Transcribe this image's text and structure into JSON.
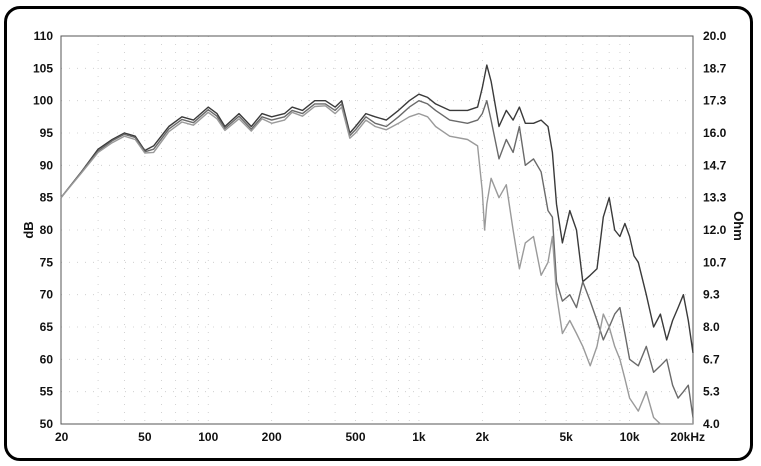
{
  "chart_data": {
    "type": "line",
    "title": "",
    "xlabel": "",
    "ylabel": "dB",
    "y2label": "Ohm",
    "xscale": "log",
    "xlim": [
      20,
      20000
    ],
    "ylim": [
      50,
      110
    ],
    "y2lim": [
      4.0,
      20.0
    ],
    "grid": true,
    "legend": "none",
    "x_ticks": [
      {
        "value": 20,
        "label": "20"
      },
      {
        "value": 50,
        "label": "50"
      },
      {
        "value": 100,
        "label": "100"
      },
      {
        "value": 200,
        "label": "200"
      },
      {
        "value": 500,
        "label": "500"
      },
      {
        "value": 1000,
        "label": "1k"
      },
      {
        "value": 2000,
        "label": "2k"
      },
      {
        "value": 5000,
        "label": "5k"
      },
      {
        "value": 10000,
        "label": "10k"
      },
      {
        "value": 20000,
        "label": "20kHz"
      }
    ],
    "y_ticks": [
      "110",
      "105",
      "100",
      "95",
      "90",
      "85",
      "80",
      "75",
      "70",
      "65",
      "60",
      "55",
      "50"
    ],
    "y2_ticks": [
      "20.0",
      "18.7",
      "17.3",
      "16.0",
      "14.7",
      "13.3",
      "12.0",
      "10.7",
      "9.3",
      "8.0",
      "6.7",
      "5.3",
      "4.0"
    ],
    "series": [
      {
        "color": "#3a3a3a",
        "points": [
          [
            20,
            85
          ],
          [
            25,
            89
          ],
          [
            30,
            92.5
          ],
          [
            35,
            94
          ],
          [
            40,
            95
          ],
          [
            45,
            94.5
          ],
          [
            50,
            92.3
          ],
          [
            55,
            93
          ],
          [
            65,
            96
          ],
          [
            75,
            97.5
          ],
          [
            85,
            97
          ],
          [
            100,
            99
          ],
          [
            110,
            98
          ],
          [
            120,
            96
          ],
          [
            140,
            98
          ],
          [
            160,
            96
          ],
          [
            180,
            98
          ],
          [
            200,
            97.5
          ],
          [
            230,
            98
          ],
          [
            250,
            99
          ],
          [
            280,
            98.5
          ],
          [
            320,
            100
          ],
          [
            360,
            100
          ],
          [
            400,
            99
          ],
          [
            430,
            100
          ],
          [
            470,
            95
          ],
          [
            500,
            96
          ],
          [
            560,
            98
          ],
          [
            620,
            97.5
          ],
          [
            700,
            97
          ],
          [
            800,
            98.5
          ],
          [
            900,
            100
          ],
          [
            1000,
            101
          ],
          [
            1100,
            100.5
          ],
          [
            1200,
            99.5
          ],
          [
            1400,
            98.5
          ],
          [
            1700,
            98.5
          ],
          [
            1900,
            99
          ],
          [
            2000,
            102
          ],
          [
            2100,
            105.5
          ],
          [
            2200,
            103
          ],
          [
            2400,
            96
          ],
          [
            2600,
            98.5
          ],
          [
            2800,
            97
          ],
          [
            3000,
            99
          ],
          [
            3200,
            96.5
          ],
          [
            3500,
            96.5
          ],
          [
            3800,
            97
          ],
          [
            4100,
            96
          ],
          [
            4300,
            92
          ],
          [
            4500,
            84
          ],
          [
            4800,
            78
          ],
          [
            5200,
            83
          ],
          [
            5600,
            80
          ],
          [
            6000,
            72
          ],
          [
            6500,
            73
          ],
          [
            7000,
            74
          ],
          [
            7500,
            82
          ],
          [
            8000,
            85
          ],
          [
            8500,
            80
          ],
          [
            9000,
            79
          ],
          [
            9500,
            81
          ],
          [
            10000,
            79
          ],
          [
            10500,
            76
          ],
          [
            11000,
            75
          ],
          [
            12000,
            70
          ],
          [
            13000,
            65
          ],
          [
            14000,
            67
          ],
          [
            15000,
            63
          ],
          [
            16000,
            66
          ],
          [
            17000,
            68
          ],
          [
            18000,
            70
          ],
          [
            19000,
            66
          ],
          [
            20000,
            61
          ]
        ]
      },
      {
        "color": "#6a6a6a",
        "points": [
          [
            20,
            85
          ],
          [
            25,
            89
          ],
          [
            30,
            92.2
          ],
          [
            35,
            93.8
          ],
          [
            40,
            94.8
          ],
          [
            45,
            94.3
          ],
          [
            50,
            92.1
          ],
          [
            55,
            92.5
          ],
          [
            65,
            95.6
          ],
          [
            75,
            97.1
          ],
          [
            85,
            96.6
          ],
          [
            100,
            98.6
          ],
          [
            110,
            97.6
          ],
          [
            120,
            95.7
          ],
          [
            140,
            97.6
          ],
          [
            160,
            95.6
          ],
          [
            180,
            97.5
          ],
          [
            200,
            97
          ],
          [
            230,
            97.5
          ],
          [
            250,
            98.5
          ],
          [
            280,
            98
          ],
          [
            320,
            99.5
          ],
          [
            360,
            99.5
          ],
          [
            400,
            98.5
          ],
          [
            430,
            99.5
          ],
          [
            470,
            94.6
          ],
          [
            500,
            95.5
          ],
          [
            560,
            97.5
          ],
          [
            620,
            96.5
          ],
          [
            700,
            96
          ],
          [
            800,
            97.5
          ],
          [
            900,
            99
          ],
          [
            1000,
            100
          ],
          [
            1100,
            99.5
          ],
          [
            1200,
            98.5
          ],
          [
            1400,
            97
          ],
          [
            1700,
            96.5
          ],
          [
            1900,
            97
          ],
          [
            2000,
            98
          ],
          [
            2100,
            100
          ],
          [
            2200,
            97
          ],
          [
            2400,
            91
          ],
          [
            2600,
            94
          ],
          [
            2800,
            92
          ],
          [
            3000,
            96
          ],
          [
            3200,
            90
          ],
          [
            3500,
            91
          ],
          [
            3800,
            89
          ],
          [
            4100,
            83
          ],
          [
            4300,
            82
          ],
          [
            4500,
            72
          ],
          [
            4800,
            69
          ],
          [
            5200,
            70
          ],
          [
            5600,
            68
          ],
          [
            6000,
            72
          ],
          [
            6500,
            69
          ],
          [
            7000,
            66
          ],
          [
            7500,
            63
          ],
          [
            8000,
            65
          ],
          [
            8500,
            67
          ],
          [
            9000,
            68
          ],
          [
            9500,
            64
          ],
          [
            10000,
            60
          ],
          [
            11000,
            59
          ],
          [
            12000,
            62
          ],
          [
            13000,
            58
          ],
          [
            14000,
            59
          ],
          [
            15000,
            60
          ],
          [
            16000,
            56
          ],
          [
            17000,
            54
          ],
          [
            18000,
            55
          ],
          [
            19000,
            56
          ],
          [
            20000,
            51
          ]
        ]
      },
      {
        "color": "#9a9a9a",
        "points": [
          [
            20,
            85
          ],
          [
            25,
            88.8
          ],
          [
            30,
            92
          ],
          [
            35,
            93.5
          ],
          [
            40,
            94.5
          ],
          [
            45,
            94
          ],
          [
            50,
            91.9
          ],
          [
            55,
            92
          ],
          [
            65,
            95.2
          ],
          [
            75,
            96.7
          ],
          [
            85,
            96.2
          ],
          [
            100,
            98.2
          ],
          [
            110,
            97.2
          ],
          [
            120,
            95.4
          ],
          [
            140,
            97.2
          ],
          [
            160,
            95.3
          ],
          [
            180,
            97.2
          ],
          [
            200,
            96.5
          ],
          [
            230,
            97
          ],
          [
            250,
            98.2
          ],
          [
            280,
            97.6
          ],
          [
            320,
            99.1
          ],
          [
            360,
            99.2
          ],
          [
            400,
            98
          ],
          [
            430,
            99
          ],
          [
            470,
            94.2
          ],
          [
            500,
            95
          ],
          [
            560,
            97
          ],
          [
            620,
            96
          ],
          [
            700,
            95.5
          ],
          [
            800,
            96.5
          ],
          [
            900,
            97.5
          ],
          [
            1000,
            98
          ],
          [
            1100,
            97.5
          ],
          [
            1200,
            96
          ],
          [
            1400,
            94.5
          ],
          [
            1700,
            94
          ],
          [
            1900,
            93
          ],
          [
            2000,
            86
          ],
          [
            2050,
            80
          ],
          [
            2100,
            84
          ],
          [
            2200,
            88
          ],
          [
            2400,
            85
          ],
          [
            2600,
            87
          ],
          [
            2800,
            80
          ],
          [
            3000,
            74
          ],
          [
            3200,
            78
          ],
          [
            3500,
            79
          ],
          [
            3800,
            73
          ],
          [
            4100,
            75
          ],
          [
            4300,
            79
          ],
          [
            4500,
            70
          ],
          [
            4800,
            64
          ],
          [
            5200,
            66
          ],
          [
            5600,
            64
          ],
          [
            6000,
            62
          ],
          [
            6500,
            59
          ],
          [
            7000,
            62
          ],
          [
            7500,
            67
          ],
          [
            8000,
            65
          ],
          [
            8500,
            62
          ],
          [
            9000,
            60
          ],
          [
            9500,
            57
          ],
          [
            10000,
            54
          ],
          [
            11000,
            52
          ],
          [
            12000,
            55
          ],
          [
            13000,
            51
          ],
          [
            14000,
            50
          ],
          [
            15000,
            50
          ],
          [
            20000,
            50
          ]
        ]
      }
    ]
  }
}
